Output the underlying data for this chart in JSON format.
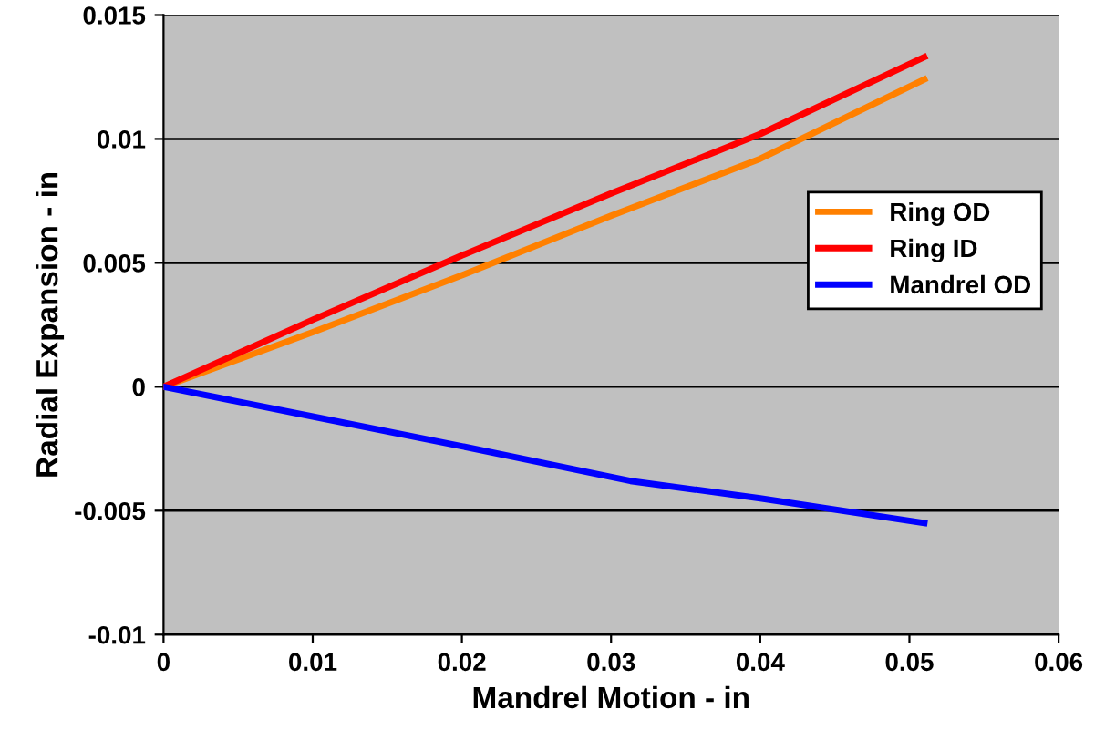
{
  "chart_data": {
    "type": "line",
    "xlabel": "Mandrel Motion - in",
    "ylabel": "Radial Expansion - in",
    "x": [
      0,
      0.01,
      0.02,
      0.03,
      0.04,
      0.051
    ],
    "series": [
      {
        "name": "Ring OD",
        "color": "#ff8000",
        "values": [
          0,
          0.0022,
          0.0045,
          0.0069,
          0.0092,
          0.0124
        ]
      },
      {
        "name": "Ring ID",
        "color": "#ff0000",
        "values": [
          0,
          0.0027,
          0.0053,
          0.0078,
          0.0102,
          0.0133
        ]
      },
      {
        "name": "Mandrel OD",
        "color": "#0000ff",
        "x": [
          0,
          0.01,
          0.02,
          0.0313,
          0.04,
          0.051
        ],
        "values": [
          0,
          -0.0012,
          -0.0024,
          -0.0038,
          -0.0045,
          -0.0055
        ]
      }
    ],
    "xlim": [
      0,
      0.06
    ],
    "xticks": [
      0,
      0.01,
      0.02,
      0.03,
      0.04,
      0.05,
      0.06
    ],
    "ylim": [
      -0.01,
      0.015
    ],
    "yticks": [
      -0.01,
      -0.005,
      0,
      0.005,
      0.01,
      0.015
    ],
    "grid": "y",
    "legend": "right",
    "marker": "none",
    "line_style": "solid"
  }
}
